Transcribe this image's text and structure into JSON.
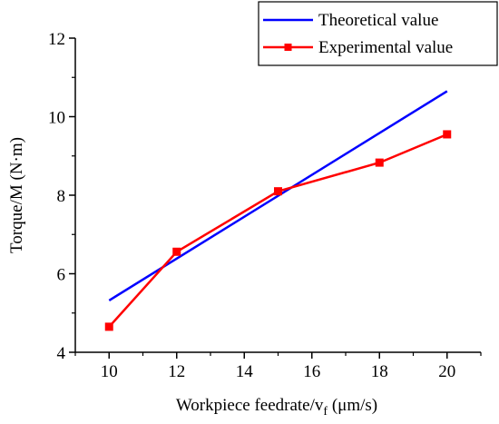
{
  "chart_data": {
    "type": "line",
    "title": "",
    "xlabel": "Workpiece feedrate/v",
    "xlabel_sub": "f",
    "xlabel_unit": " (μm/s)",
    "ylabel": "Torque/M (N·m)",
    "xlim": [
      9,
      21
    ],
    "ylim": [
      4,
      12
    ],
    "xticks": [
      "10",
      "12",
      "14",
      "16",
      "18",
      "20"
    ],
    "yticks": [
      "4",
      "6",
      "8",
      "10",
      "12"
    ],
    "grid": false,
    "legend_position": "top-right",
    "series": [
      {
        "name": "Theoretical value",
        "color": "#0000ff",
        "marker": "none",
        "x": [
          10,
          20
        ],
        "y": [
          5.32,
          10.65
        ]
      },
      {
        "name": "Experimental value",
        "color": "#ff0000",
        "marker": "square",
        "x": [
          10,
          12,
          15,
          18,
          20
        ],
        "y": [
          4.65,
          6.56,
          8.1,
          8.83,
          9.55
        ]
      }
    ]
  }
}
